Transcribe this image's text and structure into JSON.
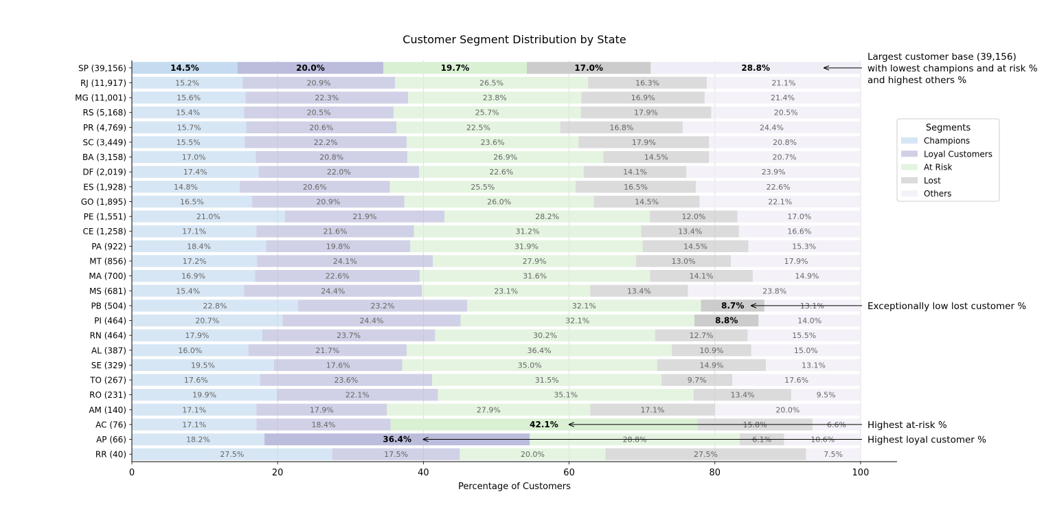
{
  "chart_data": {
    "type": "bar",
    "orientation": "horizontal",
    "stacked": true,
    "title": "Customer Segment Distribution by State",
    "xlabel": "Percentage of Customers",
    "ylabel": "",
    "xlim": [
      0,
      105
    ],
    "xticks": [
      0,
      20,
      40,
      60,
      80,
      100
    ],
    "grid": "vertical",
    "legend": {
      "title": "Segments",
      "placement": "right"
    },
    "categories": [
      "SP (39,156)",
      "RJ (11,917)",
      "MG (11,001)",
      "RS (5,168)",
      "PR (4,769)",
      "SC (3,449)",
      "BA (3,158)",
      "DF (2,019)",
      "ES (1,928)",
      "GO (1,895)",
      "PE (1,551)",
      "CE (1,258)",
      "PA (922)",
      "MT (856)",
      "MA (700)",
      "MS (681)",
      "PB (504)",
      "PI (464)",
      "RN (464)",
      "AL (387)",
      "SE (329)",
      "TO (267)",
      "RO (231)",
      "AM (140)",
      "AC (76)",
      "AP (66)",
      "RR (40)"
    ],
    "series": [
      {
        "name": "Champions",
        "color": "#c6dbef",
        "values": [
          14.5,
          15.2,
          15.6,
          15.4,
          15.7,
          15.5,
          17.0,
          17.4,
          14.8,
          16.5,
          21.0,
          17.1,
          18.4,
          17.2,
          16.9,
          15.4,
          22.8,
          20.7,
          17.9,
          16.0,
          19.5,
          17.6,
          19.9,
          17.1,
          17.1,
          18.2,
          27.5
        ]
      },
      {
        "name": "Loyal Customers",
        "color": "#bcbddc",
        "values": [
          20.0,
          20.9,
          22.3,
          20.5,
          20.6,
          22.2,
          20.8,
          22.0,
          20.6,
          20.9,
          21.9,
          21.6,
          19.8,
          24.1,
          22.6,
          24.4,
          23.2,
          24.4,
          23.7,
          21.7,
          17.6,
          23.6,
          22.1,
          17.9,
          18.4,
          36.4,
          17.5
        ]
      },
      {
        "name": "At Risk",
        "color": "#d9f0d3",
        "values": [
          19.7,
          26.5,
          23.8,
          25.7,
          22.5,
          23.6,
          26.9,
          22.6,
          25.5,
          26.0,
          28.2,
          31.2,
          31.9,
          27.9,
          31.6,
          23.1,
          32.1,
          32.1,
          30.2,
          36.4,
          35.0,
          31.5,
          35.1,
          27.9,
          42.1,
          28.8,
          20.0
        ]
      },
      {
        "name": "Lost",
        "color": "#cccccc",
        "values": [
          17.0,
          16.3,
          16.9,
          17.9,
          16.8,
          17.9,
          14.5,
          14.1,
          16.5,
          14.5,
          12.0,
          13.4,
          14.5,
          13.0,
          14.1,
          13.4,
          8.7,
          8.8,
          12.7,
          10.9,
          14.9,
          9.7,
          13.4,
          17.1,
          15.8,
          6.1,
          27.5
        ]
      },
      {
        "name": "Others",
        "color": "#efedf5",
        "values": [
          28.8,
          21.1,
          21.4,
          20.5,
          24.4,
          20.8,
          20.7,
          23.9,
          22.6,
          22.1,
          17.0,
          16.6,
          15.3,
          17.9,
          14.9,
          23.8,
          13.1,
          14.0,
          15.5,
          15.0,
          13.1,
          17.6,
          9.5,
          20.0,
          6.6,
          10.6,
          7.5
        ]
      }
    ],
    "highlights": [
      {
        "category": "SP (39,156)",
        "series": "all"
      },
      {
        "category": "PB (504)",
        "series": "Lost"
      },
      {
        "category": "PI (464)",
        "series": "Lost"
      },
      {
        "category": "AC (76)",
        "series": "At Risk"
      },
      {
        "category": "AP (66)",
        "series": "Loyal Customers"
      }
    ],
    "annotations": [
      {
        "category": "SP (39,156)",
        "x": 95,
        "lines": [
          "Largest customer base (39,156)",
          "with lowest champions and at risk %",
          "and highest others %"
        ]
      },
      {
        "category": "PB (504)",
        "x": 85,
        "lines": [
          "Exceptionally low lost customer %"
        ]
      },
      {
        "category": "AC (76)",
        "x": 60,
        "lines": [
          "Highest at-risk %"
        ]
      },
      {
        "category": "AP (66)",
        "x": 40,
        "lines": [
          "Highest loyal customer %"
        ]
      }
    ]
  }
}
